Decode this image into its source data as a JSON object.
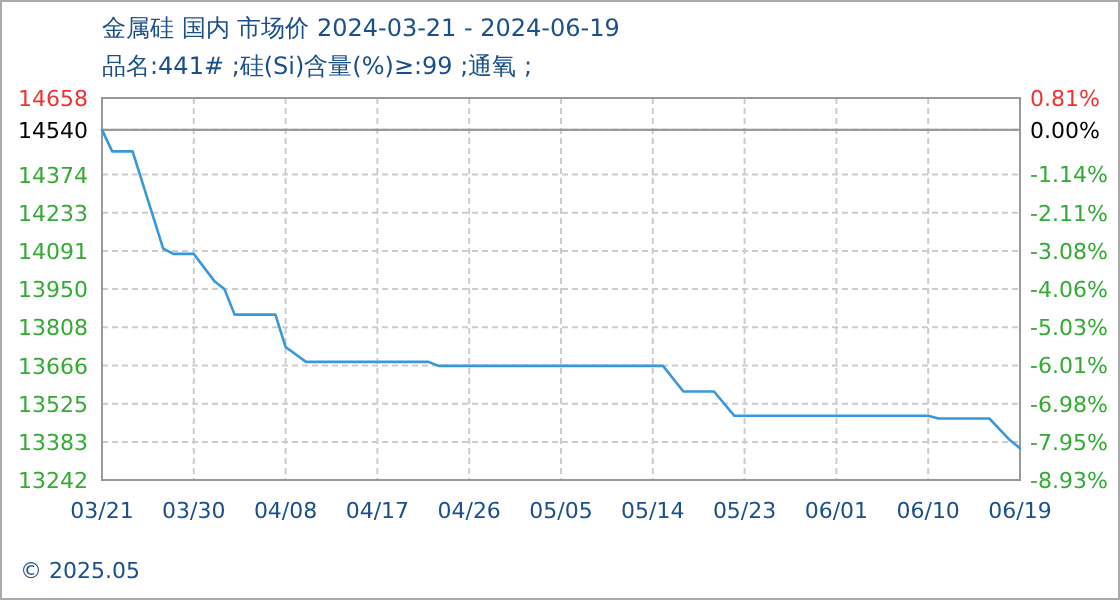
{
  "chart_data": {
    "type": "line",
    "title": "金属硅 国内 市场价 2024-03-21 - 2024-06-19",
    "subtitle": "品名:441# ;硅(Si)含量(%)≥:99 ;通氧 ;",
    "x": [
      "2024-03-21",
      "2024-03-22",
      "2024-03-24",
      "2024-03-27",
      "2024-03-28",
      "2024-03-30",
      "2024-04-01",
      "2024-04-02",
      "2024-04-03",
      "2024-04-07",
      "2024-04-08",
      "2024-04-10",
      "2024-04-22",
      "2024-04-23",
      "2024-05-15",
      "2024-05-17",
      "2024-05-20",
      "2024-05-22",
      "2024-06-10",
      "2024-06-11",
      "2024-06-16",
      "2024-06-18",
      "2024-06-19"
    ],
    "values": [
      14540,
      14460,
      14460,
      14100,
      14080,
      14080,
      13980,
      13950,
      13855,
      13855,
      13735,
      13680,
      13680,
      13665,
      13665,
      13570,
      13570,
      13480,
      13480,
      13470,
      13470,
      13390,
      13360
    ],
    "color": "#3a97d9",
    "xlim": [
      "2024-03-21",
      "2024-06-19"
    ],
    "xticks": [
      {
        "value": "2024-03-21",
        "label": "03/21"
      },
      {
        "value": "2024-03-30",
        "label": "03/30"
      },
      {
        "value": "2024-04-08",
        "label": "04/08"
      },
      {
        "value": "2024-04-17",
        "label": "04/17"
      },
      {
        "value": "2024-04-26",
        "label": "04/26"
      },
      {
        "value": "2024-05-05",
        "label": "05/05"
      },
      {
        "value": "2024-05-14",
        "label": "05/14"
      },
      {
        "value": "2024-05-23",
        "label": "05/23"
      },
      {
        "value": "2024-06-01",
        "label": "06/01"
      },
      {
        "value": "2024-06-10",
        "label": "06/10"
      },
      {
        "value": "2024-06-19",
        "label": "06/19"
      }
    ],
    "ylim": [
      13242,
      14658
    ],
    "yticks": [
      13242,
      13383,
      13525,
      13666,
      13808,
      13950,
      14091,
      14233,
      14374,
      14540,
      14658
    ],
    "y2lim": [
      -8.93,
      0.81
    ],
    "y2ticks": [
      {
        "value": -8.93,
        "label": "-8.93%"
      },
      {
        "value": -7.95,
        "label": "-7.95%"
      },
      {
        "value": -6.98,
        "label": "-6.98%"
      },
      {
        "value": -6.01,
        "label": "-6.01%"
      },
      {
        "value": -5.03,
        "label": "-5.03%"
      },
      {
        "value": -4.06,
        "label": "-4.06%"
      },
      {
        "value": -3.08,
        "label": "-3.08%"
      },
      {
        "value": -2.11,
        "label": "-2.11%"
      },
      {
        "value": -1.14,
        "label": "-1.14%"
      },
      {
        "value": 0,
        "label": "0.00%"
      },
      {
        "value": 0.81,
        "label": "0.81%"
      }
    ],
    "grid": true,
    "ref_lines": [
      {
        "axis": "y",
        "value": 14540,
        "color": "#999999"
      }
    ],
    "annotations": [
      "© 2025.05"
    ]
  }
}
